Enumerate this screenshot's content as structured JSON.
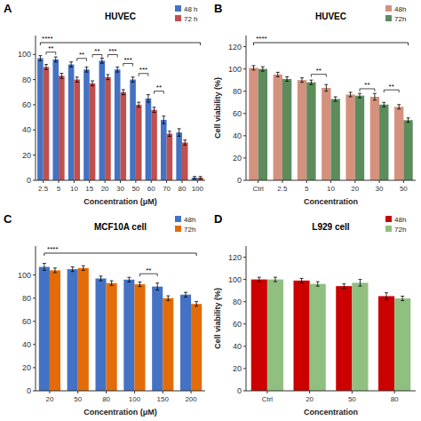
{
  "chart_data": [
    {
      "type": "bar",
      "title": "HUVEC",
      "panel_label": "A",
      "xlabel": "Concentration (μM)",
      "categories": [
        "2.5",
        "5",
        "10",
        "15",
        "20",
        "30",
        "50",
        "60",
        "70",
        "80",
        "100"
      ],
      "series": [
        {
          "name": "48 h",
          "color": "#4472C4",
          "values": [
            97,
            96,
            92,
            88,
            95,
            88,
            80,
            65,
            48,
            38,
            2
          ],
          "errors": [
            2,
            2,
            2,
            2,
            2,
            2,
            2,
            3,
            3,
            3,
            1
          ]
        },
        {
          "name": "72 h",
          "color": "#C0504D",
          "values": [
            90,
            83,
            80,
            77,
            82,
            70,
            60,
            56,
            37,
            30,
            2
          ],
          "errors": [
            2,
            2,
            2,
            2,
            2,
            2,
            2,
            2,
            2,
            2,
            1
          ]
        }
      ],
      "ylim": [
        0,
        115
      ],
      "yticks": [
        0,
        20,
        40,
        60,
        80,
        100
      ],
      "grid": false,
      "legend": "upper right",
      "annotations": [
        {
          "text": "**",
          "from": "2.5",
          "to": "5",
          "shape": "bracket"
        },
        {
          "text": "**",
          "from": "10",
          "to": "15",
          "shape": "bracket"
        },
        {
          "text": "**",
          "from": "15",
          "to": "20",
          "shape": "bracket"
        },
        {
          "text": "***",
          "from": "20",
          "to": "30",
          "shape": "bracket"
        },
        {
          "text": "***",
          "from": "30",
          "to": "50",
          "shape": "bracket"
        },
        {
          "text": "***",
          "from": "50",
          "to": "60",
          "shape": "bracket"
        },
        {
          "text": "**",
          "from": "60",
          "to": "70",
          "shape": "bracket"
        },
        {
          "text": "****",
          "from": "2.5",
          "to": "100",
          "shape": "span"
        }
      ]
    },
    {
      "type": "bar",
      "title": "HUVEC",
      "panel_label": "B",
      "xlabel": "Concentration",
      "ylabel": "Cell viability (%)",
      "categories": [
        "Ctrl",
        "2.5",
        "5",
        "10",
        "20",
        "30",
        "50"
      ],
      "series": [
        {
          "name": "48h",
          "color": "#D4917E",
          "values": [
            101,
            95,
            90,
            83,
            77,
            75,
            66
          ],
          "errors": [
            2,
            2,
            2,
            3,
            2,
            3,
            2
          ]
        },
        {
          "name": "72h",
          "color": "#5C8C5C",
          "values": [
            100,
            91,
            88,
            73,
            76,
            68,
            54
          ],
          "errors": [
            2,
            2,
            2,
            2,
            2,
            2,
            2
          ]
        }
      ],
      "ylim": [
        0,
        130
      ],
      "yticks": [
        0,
        20,
        40,
        60,
        80,
        100,
        120
      ],
      "grid": false,
      "legend": "upper right",
      "annotations": [
        {
          "text": "**",
          "from": "5",
          "to": "10",
          "shape": "bracket"
        },
        {
          "text": "**",
          "from": "20",
          "to": "30",
          "shape": "bracket"
        },
        {
          "text": "**",
          "from": "30",
          "to": "50",
          "shape": "bracket"
        },
        {
          "text": "****",
          "from": "Ctrl",
          "to": "50",
          "shape": "span"
        }
      ]
    },
    {
      "type": "bar",
      "title": "MCF10A cell",
      "panel_label": "C",
      "xlabel": "Concentration (μM)",
      "categories": [
        "20",
        "50",
        "80",
        "100",
        "150",
        "200"
      ],
      "series": [
        {
          "name": "48h",
          "color": "#4472C4",
          "values": [
            107,
            105,
            97,
            96,
            90,
            83
          ],
          "errors": [
            3,
            2,
            2,
            2,
            3,
            2
          ]
        },
        {
          "name": "72h",
          "color": "#E36C09",
          "values": [
            104,
            106,
            93,
            92,
            80,
            75
          ],
          "errors": [
            2,
            2,
            2,
            2,
            2,
            2
          ]
        }
      ],
      "ylim": [
        0,
        125
      ],
      "yticks": [
        0,
        20,
        40,
        60,
        80,
        100
      ],
      "grid": false,
      "legend": "upper right",
      "annotations": [
        {
          "text": "**",
          "from": "100",
          "to": "150",
          "shape": "bracket"
        },
        {
          "text": "****",
          "from": "20",
          "to": "200",
          "shape": "span"
        }
      ]
    },
    {
      "type": "bar",
      "title": "L929 cell",
      "panel_label": "D",
      "xlabel": "Concentration",
      "ylabel": "Cell viability (%)",
      "categories": [
        "Ctrl",
        "20",
        "50",
        "80"
      ],
      "series": [
        {
          "name": "48h",
          "color": "#CC0000",
          "values": [
            100,
            99,
            94,
            85
          ],
          "errors": [
            2,
            2,
            2,
            3
          ]
        },
        {
          "name": "72h",
          "color": "#90C080",
          "values": [
            100,
            96,
            97,
            83
          ],
          "errors": [
            2,
            2,
            3,
            2
          ]
        }
      ],
      "ylim": [
        0,
        130
      ],
      "yticks": [
        0,
        20,
        40,
        60,
        80,
        100,
        120
      ],
      "grid": false,
      "legend": "upper right"
    }
  ]
}
